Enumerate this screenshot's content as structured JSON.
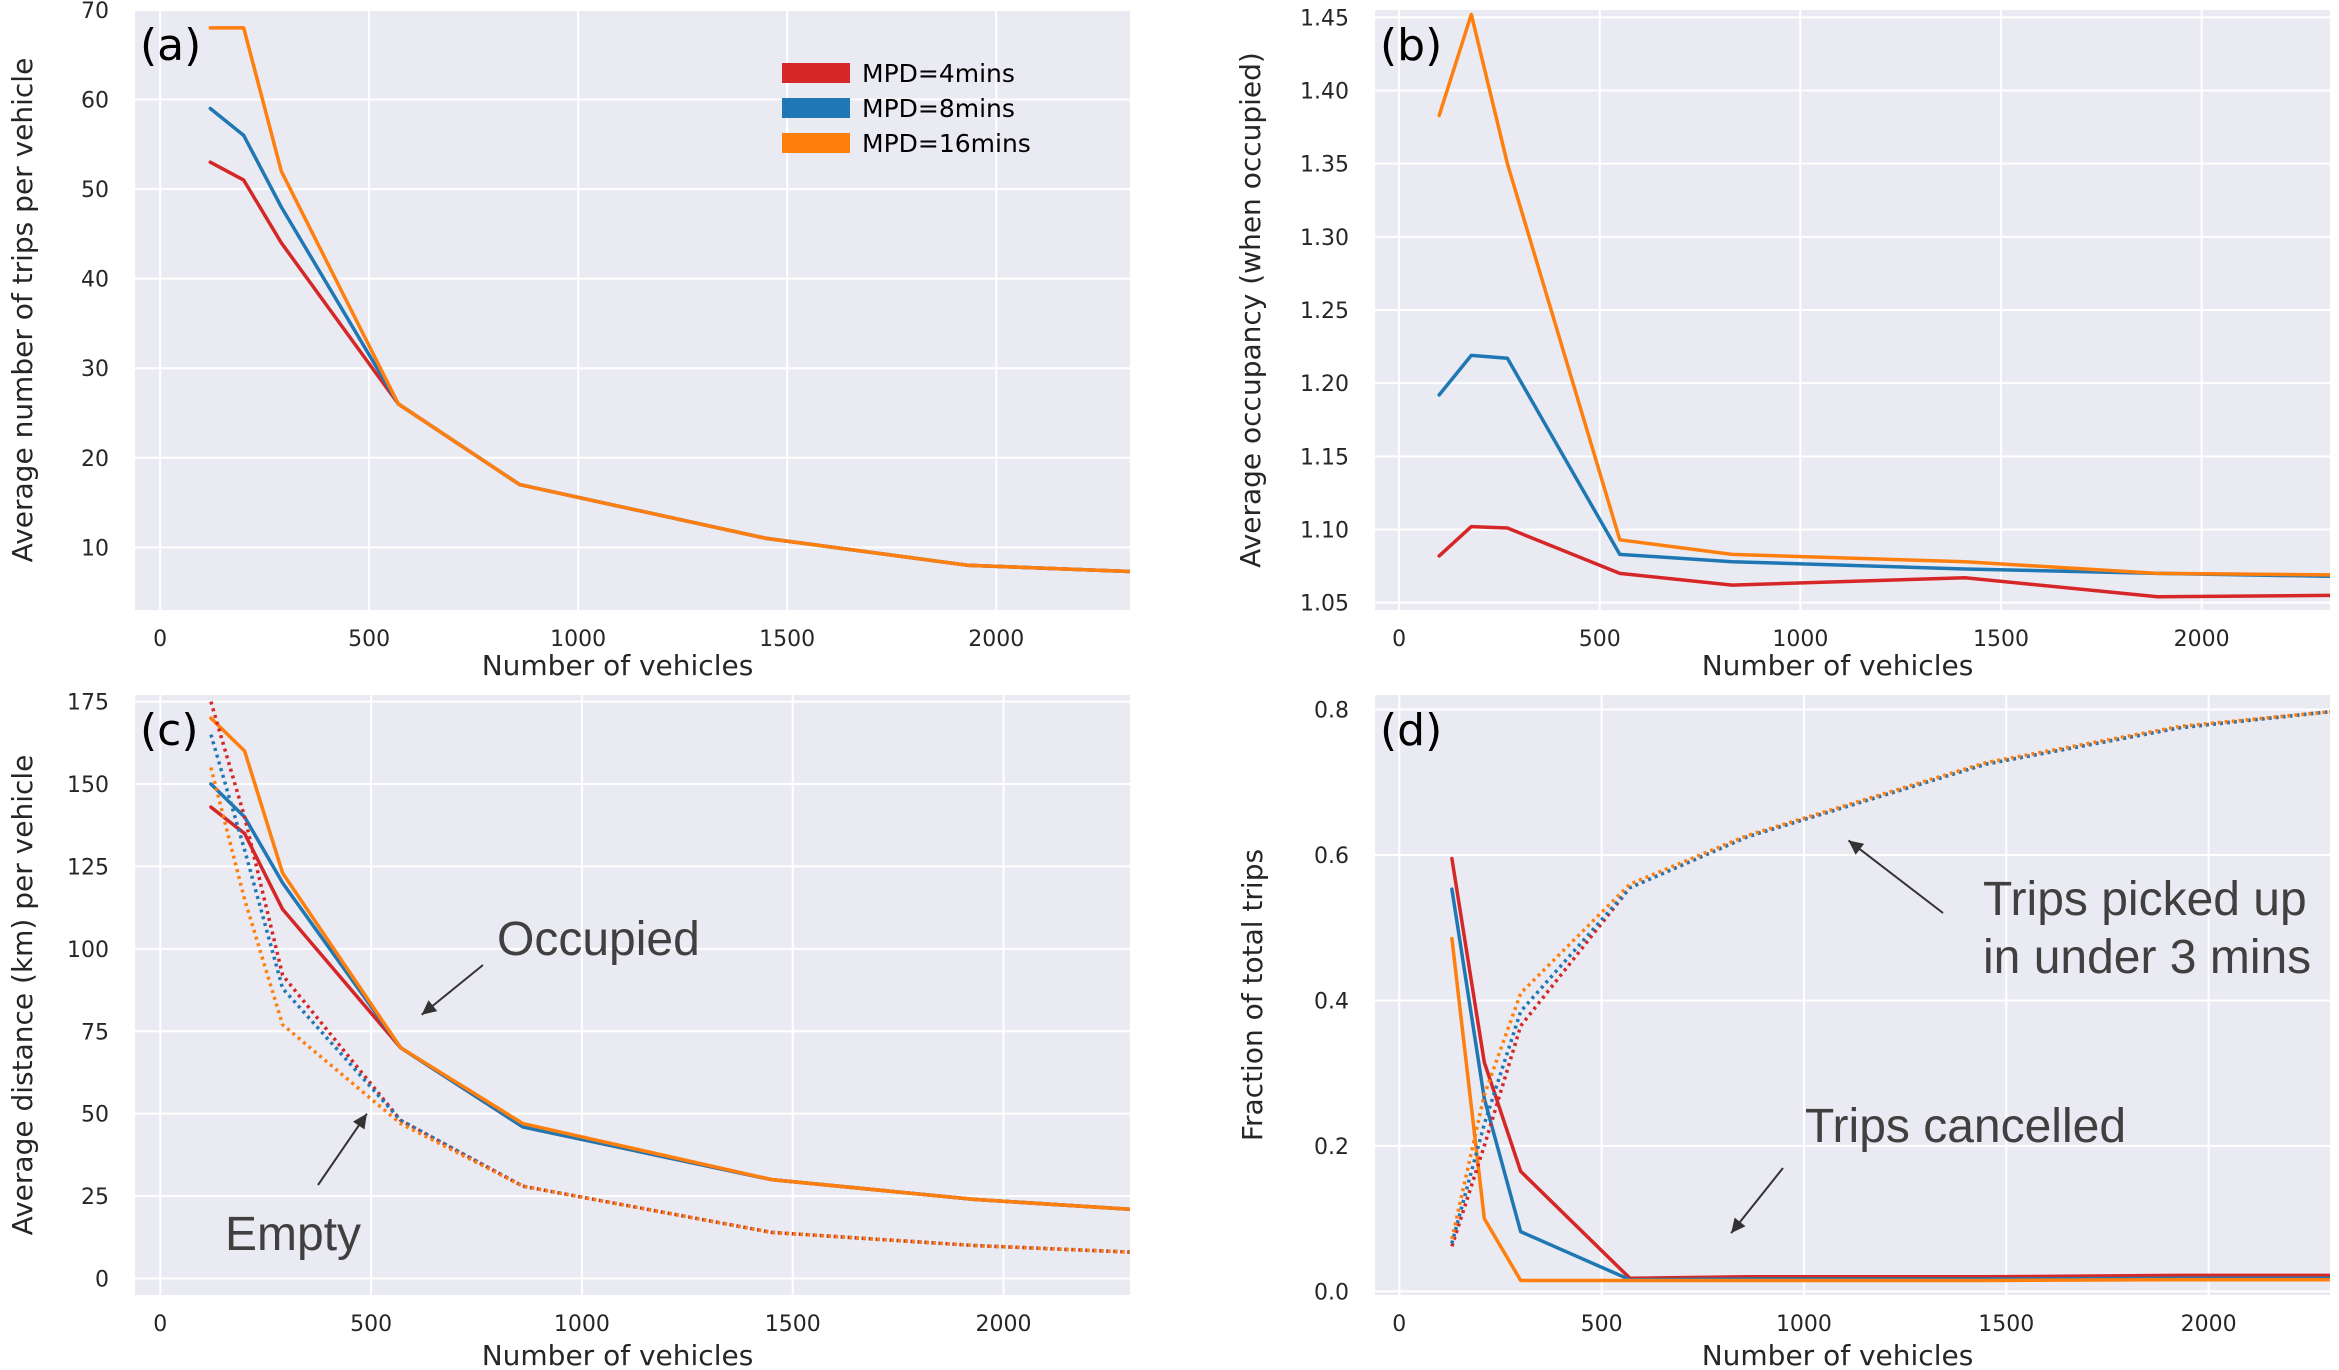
{
  "colors": {
    "MPD=4mins": "#d62728",
    "MPD=8mins": "#1f77b4",
    "MPD=16mins": "#ff7f0e",
    "plot_background": "#eaeaf2",
    "grid": "#ffffff",
    "annotation_text": "#404040"
  },
  "legend": {
    "placement": "top-right of panel (a)",
    "entries": [
      "MPD=4mins",
      "MPD=8mins",
      "MPD=16mins"
    ]
  },
  "chart_data": [
    {
      "type": "line",
      "panel_label": "(a)",
      "xlabel": "Number of vehicles",
      "ylabel": "Average number of trips per vehicle",
      "xlim": [
        -60,
        2320
      ],
      "ylim": [
        3,
        70
      ],
      "xticks": [
        0,
        500,
        1000,
        1500,
        2000
      ],
      "yticks": [
        10,
        20,
        30,
        40,
        50,
        60,
        70
      ],
      "grid": true,
      "series": [
        {
          "name": "MPD=4mins",
          "style": "solid",
          "x": [
            120,
            200,
            290,
            570,
            860,
            1450,
            1930,
            2320
          ],
          "y": [
            53,
            51,
            44,
            26,
            17,
            11,
            8,
            7.3
          ]
        },
        {
          "name": "MPD=8mins",
          "style": "solid",
          "x": [
            120,
            200,
            290,
            570,
            860,
            1450,
            1930,
            2320
          ],
          "y": [
            59,
            56,
            48,
            26,
            17,
            11,
            8,
            7.3
          ]
        },
        {
          "name": "MPD=16mins",
          "style": "solid",
          "x": [
            120,
            200,
            290,
            570,
            860,
            1450,
            1930,
            2320
          ],
          "y": [
            68,
            68,
            52,
            26,
            17,
            11,
            8,
            7.3
          ]
        }
      ]
    },
    {
      "type": "line",
      "panel_label": "(b)",
      "xlabel": "Number of vehicles",
      "ylabel": "Average occupancy (when occupied)",
      "xlim": [
        -60,
        2320
      ],
      "ylim": [
        1.045,
        1.455
      ],
      "xticks": [
        0,
        500,
        1000,
        1500,
        2000
      ],
      "yticks": [
        1.05,
        1.1,
        1.15,
        1.2,
        1.25,
        1.3,
        1.35,
        1.4,
        1.45
      ],
      "ytick_labels": [
        "1.05",
        "1.10",
        "1.15",
        "1.20",
        "1.25",
        "1.30",
        "1.35",
        "1.40",
        "1.45"
      ],
      "grid": true,
      "series": [
        {
          "name": "MPD=4mins",
          "style": "solid",
          "x": [
            100,
            180,
            270,
            550,
            830,
            1410,
            1890,
            2320
          ],
          "y": [
            1.082,
            1.102,
            1.101,
            1.07,
            1.062,
            1.067,
            1.054,
            1.055
          ]
        },
        {
          "name": "MPD=8mins",
          "style": "solid",
          "x": [
            100,
            180,
            270,
            550,
            830,
            1410,
            1890,
            2320
          ],
          "y": [
            1.192,
            1.219,
            1.217,
            1.083,
            1.078,
            1.073,
            1.07,
            1.068
          ]
        },
        {
          "name": "MPD=16mins",
          "style": "solid",
          "x": [
            100,
            180,
            270,
            550,
            830,
            1410,
            1890,
            2320
          ],
          "y": [
            1.383,
            1.452,
            1.35,
            1.093,
            1.083,
            1.078,
            1.07,
            1.069
          ]
        }
      ]
    },
    {
      "type": "line",
      "panel_label": "(c)",
      "xlabel": "Number of vehicles",
      "ylabel": "Average distance (km) per vehicle",
      "xlim": [
        -60,
        2300
      ],
      "ylim": [
        -5,
        177
      ],
      "xticks": [
        0,
        500,
        1000,
        1500,
        2000
      ],
      "yticks": [
        0,
        25,
        50,
        75,
        100,
        125,
        150,
        175
      ],
      "grid": true,
      "annotations": [
        {
          "text": "Occupied",
          "points_to": [
            620,
            80
          ]
        },
        {
          "text": "Empty",
          "points_to": [
            490,
            50
          ]
        }
      ],
      "series": [
        {
          "name": "MPD=4mins",
          "kind": "Occupied",
          "style": "solid",
          "x": [
            120,
            200,
            290,
            570,
            860,
            1450,
            1930,
            2300
          ],
          "y": [
            143,
            135,
            112,
            70,
            46,
            30,
            24,
            21
          ]
        },
        {
          "name": "MPD=8mins",
          "kind": "Occupied",
          "style": "solid",
          "x": [
            120,
            200,
            290,
            570,
            860,
            1450,
            1930,
            2300
          ],
          "y": [
            150,
            140,
            120,
            70,
            46,
            30,
            24,
            21
          ]
        },
        {
          "name": "MPD=16mins",
          "kind": "Occupied",
          "style": "solid",
          "x": [
            120,
            200,
            290,
            570,
            860,
            1450,
            1930,
            2300
          ],
          "y": [
            170,
            160,
            123,
            70,
            47,
            30,
            24,
            21
          ]
        },
        {
          "name": "MPD=4mins",
          "kind": "Empty",
          "style": "dotted",
          "x": [
            120,
            200,
            290,
            570,
            860,
            1450,
            1930,
            2300
          ],
          "y": [
            175,
            140,
            92,
            48,
            28,
            14,
            10,
            8
          ]
        },
        {
          "name": "MPD=8mins",
          "kind": "Empty",
          "style": "dotted",
          "x": [
            120,
            200,
            290,
            570,
            860,
            1450,
            1930,
            2300
          ],
          "y": [
            165,
            130,
            88,
            48,
            28,
            14,
            10,
            8
          ]
        },
        {
          "name": "MPD=16mins",
          "kind": "Empty",
          "style": "dotted",
          "x": [
            120,
            200,
            290,
            570,
            860,
            1450,
            1930,
            2300
          ],
          "y": [
            155,
            115,
            77,
            47,
            28,
            14,
            10,
            8
          ]
        }
      ]
    },
    {
      "type": "line",
      "panel_label": "(d)",
      "xlabel": "Number of vehicles",
      "ylabel": "Fraction of total trips",
      "xlim": [
        -60,
        2300
      ],
      "ylim": [
        -0.005,
        0.82
      ],
      "xticks": [
        0,
        500,
        1000,
        1500,
        2000
      ],
      "yticks": [
        0.0,
        0.2,
        0.4,
        0.6,
        0.8
      ],
      "ytick_labels": [
        "0.0",
        "0.2",
        "0.4",
        "0.6",
        "0.8"
      ],
      "grid": true,
      "annotations": [
        {
          "text_lines": [
            "Trips picked up",
            "in under 3 mins"
          ],
          "points_to": [
            1110,
            0.62
          ]
        },
        {
          "text": "Trips cancelled",
          "points_to": [
            820,
            0.08
          ]
        }
      ],
      "series": [
        {
          "name": "MPD=4mins",
          "kind": "Trips cancelled",
          "style": "solid",
          "x": [
            130,
            210,
            300,
            570,
            860,
            1450,
            1930,
            2300
          ],
          "y": [
            0.595,
            0.315,
            0.165,
            0.018,
            0.02,
            0.02,
            0.022,
            0.022
          ]
        },
        {
          "name": "MPD=8mins",
          "kind": "Trips cancelled",
          "style": "solid",
          "x": [
            130,
            210,
            300,
            570,
            860,
            1450,
            1930,
            2300
          ],
          "y": [
            0.553,
            0.265,
            0.082,
            0.016,
            0.017,
            0.017,
            0.018,
            0.018
          ]
        },
        {
          "name": "MPD=16mins",
          "kind": "Trips cancelled",
          "style": "solid",
          "x": [
            130,
            210,
            300,
            570,
            860,
            1450,
            1930,
            2300
          ],
          "y": [
            0.485,
            0.1,
            0.015,
            0.015,
            0.015,
            0.015,
            0.016,
            0.016
          ]
        },
        {
          "name": "MPD=4mins",
          "kind": "Trips picked up in under 3 mins",
          "style": "dotted",
          "x": [
            130,
            210,
            300,
            570,
            860,
            1450,
            1930,
            2300
          ],
          "y": [
            0.062,
            0.2,
            0.365,
            0.555,
            0.625,
            0.725,
            0.775,
            0.797
          ]
        },
        {
          "name": "MPD=8mins",
          "kind": "Trips picked up in under 3 mins",
          "style": "dotted",
          "x": [
            130,
            210,
            300,
            570,
            860,
            1450,
            1930,
            2300
          ],
          "y": [
            0.066,
            0.23,
            0.385,
            0.555,
            0.625,
            0.725,
            0.775,
            0.797
          ]
        },
        {
          "name": "MPD=16mins",
          "kind": "Trips picked up in under 3 mins",
          "style": "dotted",
          "x": [
            130,
            210,
            300,
            570,
            860,
            1450,
            1930,
            2300
          ],
          "y": [
            0.072,
            0.27,
            0.41,
            0.56,
            0.627,
            0.727,
            0.777,
            0.797
          ]
        }
      ]
    }
  ]
}
